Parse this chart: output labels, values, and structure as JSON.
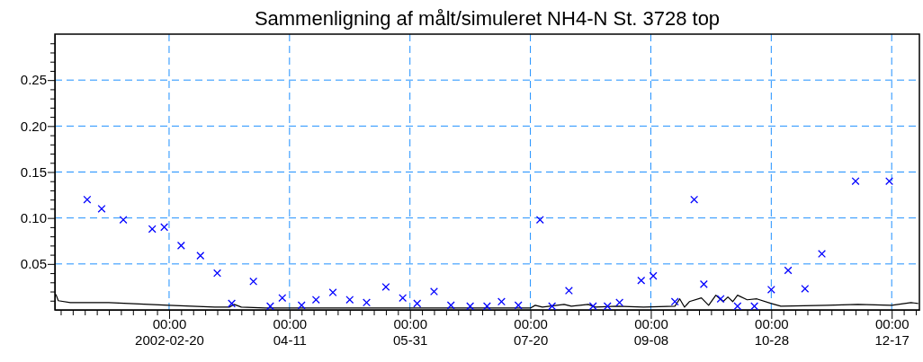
{
  "chart_data": {
    "type": "scatter",
    "title": "Sammenligning af målt/simuleret NH4-N St. 3728 top",
    "xlim": [
      "2002-01-03T14:00",
      "2002-12-28T12:00"
    ],
    "ylim": [
      0,
      0.3
    ],
    "xticks": [
      {
        "value": "2002-01-06",
        "label": null
      },
      {
        "value": "2002-01-11",
        "label": null
      },
      {
        "value": "2002-01-16",
        "label": null
      },
      {
        "value": "2002-01-21",
        "label": null
      },
      {
        "value": "2002-01-26",
        "label": null
      },
      {
        "value": "2002-01-31",
        "label": null
      },
      {
        "value": "2002-02-05",
        "label": null
      },
      {
        "value": "2002-02-10",
        "label": null
      },
      {
        "value": "2002-02-15",
        "label": null
      },
      {
        "value": "2002-02-20",
        "label": "00:00\n2002-02-20"
      },
      {
        "value": "2002-02-25",
        "label": null
      },
      {
        "value": "2002-03-02",
        "label": null
      },
      {
        "value": "2002-03-07",
        "label": null
      },
      {
        "value": "2002-03-12",
        "label": null
      },
      {
        "value": "2002-03-17",
        "label": null
      },
      {
        "value": "2002-03-22",
        "label": null
      },
      {
        "value": "2002-03-27",
        "label": null
      },
      {
        "value": "2002-04-01",
        "label": null
      },
      {
        "value": "2002-04-06",
        "label": null
      },
      {
        "value": "2002-04-11",
        "label": "00:00\n04-11"
      },
      {
        "value": "2002-04-16",
        "label": null
      },
      {
        "value": "2002-04-21",
        "label": null
      },
      {
        "value": "2002-04-26",
        "label": null
      },
      {
        "value": "2002-05-01",
        "label": null
      },
      {
        "value": "2002-05-06",
        "label": null
      },
      {
        "value": "2002-05-11",
        "label": null
      },
      {
        "value": "2002-05-16",
        "label": null
      },
      {
        "value": "2002-05-21",
        "label": null
      },
      {
        "value": "2002-05-26",
        "label": null
      },
      {
        "value": "2002-05-31",
        "label": "00:00\n05-31"
      },
      {
        "value": "2002-06-05",
        "label": null
      },
      {
        "value": "2002-06-10",
        "label": null
      },
      {
        "value": "2002-06-15",
        "label": null
      },
      {
        "value": "2002-06-20",
        "label": null
      },
      {
        "value": "2002-06-25",
        "label": null
      },
      {
        "value": "2002-06-30",
        "label": null
      },
      {
        "value": "2002-07-05",
        "label": null
      },
      {
        "value": "2002-07-10",
        "label": null
      },
      {
        "value": "2002-07-15",
        "label": null
      },
      {
        "value": "2002-07-20",
        "label": "00:00\n07-20"
      },
      {
        "value": "2002-07-25",
        "label": null
      },
      {
        "value": "2002-07-30",
        "label": null
      },
      {
        "value": "2002-08-04",
        "label": null
      },
      {
        "value": "2002-08-09",
        "label": null
      },
      {
        "value": "2002-08-14",
        "label": null
      },
      {
        "value": "2002-08-19",
        "label": null
      },
      {
        "value": "2002-08-24",
        "label": null
      },
      {
        "value": "2002-08-29",
        "label": null
      },
      {
        "value": "2002-09-03",
        "label": null
      },
      {
        "value": "2002-09-08",
        "label": "00:00\n09-08"
      },
      {
        "value": "2002-09-13",
        "label": null
      },
      {
        "value": "2002-09-18",
        "label": null
      },
      {
        "value": "2002-09-23",
        "label": null
      },
      {
        "value": "2002-09-28",
        "label": null
      },
      {
        "value": "2002-10-03",
        "label": null
      },
      {
        "value": "2002-10-08",
        "label": null
      },
      {
        "value": "2002-10-13",
        "label": null
      },
      {
        "value": "2002-10-18",
        "label": null
      },
      {
        "value": "2002-10-23",
        "label": null
      },
      {
        "value": "2002-10-28",
        "label": "00:00\n10-28"
      },
      {
        "value": "2002-11-02",
        "label": null
      },
      {
        "value": "2002-11-07",
        "label": null
      },
      {
        "value": "2002-11-12",
        "label": null
      },
      {
        "value": "2002-11-17",
        "label": null
      },
      {
        "value": "2002-11-22",
        "label": null
      },
      {
        "value": "2002-11-27",
        "label": null
      },
      {
        "value": "2002-12-02",
        "label": null
      },
      {
        "value": "2002-12-07",
        "label": null
      },
      {
        "value": "2002-12-12",
        "label": null
      },
      {
        "value": "2002-12-17",
        "label": "00:00\n12-17"
      },
      {
        "value": "2002-12-22",
        "label": null
      },
      {
        "value": "2002-12-27",
        "label": null
      }
    ],
    "yticks": [
      {
        "value": 0.01,
        "label": null
      },
      {
        "value": 0.02,
        "label": null
      },
      {
        "value": 0.03,
        "label": null
      },
      {
        "value": 0.04,
        "label": null
      },
      {
        "value": 0.05,
        "label": "0.05"
      },
      {
        "value": 0.06,
        "label": null
      },
      {
        "value": 0.07,
        "label": null
      },
      {
        "value": 0.08,
        "label": null
      },
      {
        "value": 0.09,
        "label": null
      },
      {
        "value": 0.1,
        "label": "0.10"
      },
      {
        "value": 0.11,
        "label": null
      },
      {
        "value": 0.12,
        "label": null
      },
      {
        "value": 0.13,
        "label": null
      },
      {
        "value": 0.14,
        "label": null
      },
      {
        "value": 0.15,
        "label": "0.15"
      },
      {
        "value": 0.16,
        "label": null
      },
      {
        "value": 0.17,
        "label": null
      },
      {
        "value": 0.18,
        "label": null
      },
      {
        "value": 0.19,
        "label": null
      },
      {
        "value": 0.2,
        "label": "0.20"
      },
      {
        "value": 0.21,
        "label": null
      },
      {
        "value": 0.22,
        "label": null
      },
      {
        "value": 0.23,
        "label": null
      },
      {
        "value": 0.24,
        "label": null
      },
      {
        "value": 0.25,
        "label": "0.25"
      },
      {
        "value": 0.26,
        "label": null
      },
      {
        "value": 0.27,
        "label": null
      },
      {
        "value": 0.28,
        "label": null
      },
      {
        "value": 0.29,
        "label": null
      }
    ],
    "grid": true,
    "series": [
      {
        "type": "line",
        "color": "#000000",
        "marker": "none",
        "line_style": "solid",
        "x": [
          "2002-01-04",
          "2002-01-05",
          "2002-01-10",
          "2002-01-26",
          "2002-02-20",
          "2002-03-11",
          "2002-03-17",
          "2002-03-19",
          "2002-03-22",
          "2002-04-01",
          "2002-05-01",
          "2002-06-01",
          "2002-07-01",
          "2002-07-20",
          "2002-07-22",
          "2002-07-25",
          "2002-08-03",
          "2002-08-06",
          "2002-08-13",
          "2002-08-16",
          "2002-08-25",
          "2002-09-05",
          "2002-09-18",
          "2002-09-20",
          "2002-09-22",
          "2002-09-24",
          "2002-09-29",
          "2002-10-02",
          "2002-10-05",
          "2002-10-08",
          "2002-10-10",
          "2002-10-12",
          "2002-10-14",
          "2002-10-18",
          "2002-10-22",
          "2002-10-28",
          "2002-11-01",
          "2002-11-20",
          "2002-12-03",
          "2002-12-17",
          "2002-12-25",
          "2002-12-28"
        ],
        "values": [
          0.017,
          0.01,
          0.008,
          0.008,
          0.005,
          0.003,
          0.003,
          0.006,
          0.003,
          0.002,
          0.002,
          0.002,
          0.002,
          0.002,
          0.005,
          0.003,
          0.006,
          0.004,
          0.006,
          0.003,
          0.004,
          0.003,
          0.004,
          0.012,
          0.003,
          0.009,
          0.013,
          0.005,
          0.016,
          0.009,
          0.014,
          0.009,
          0.016,
          0.011,
          0.012,
          0.007,
          0.004,
          0.005,
          0.006,
          0.005,
          0.008,
          0.007
        ]
      },
      {
        "color": "#0000ff",
        "marker": "cross",
        "x": [
          "2002-01-17",
          "2002-01-23",
          "2002-02-01",
          "2002-02-13",
          "2002-02-18",
          "2002-02-25",
          "2002-03-05",
          "2002-03-12",
          "2002-03-18",
          "2002-03-27",
          "2002-04-03",
          "2002-04-08",
          "2002-04-16",
          "2002-04-22",
          "2002-04-29",
          "2002-05-06",
          "2002-05-13",
          "2002-05-21",
          "2002-05-28",
          "2002-06-03",
          "2002-06-10",
          "2002-06-17",
          "2002-06-25",
          "2002-07-02",
          "2002-07-08",
          "2002-07-15",
          "2002-07-24",
          "2002-07-29",
          "2002-08-05",
          "2002-08-15",
          "2002-08-21",
          "2002-08-26",
          "2002-09-04",
          "2002-09-09",
          "2002-09-18",
          "2002-09-26",
          "2002-09-30",
          "2002-10-07",
          "2002-10-14",
          "2002-10-21",
          "2002-10-28",
          "2002-11-04",
          "2002-11-11",
          "2002-11-18",
          "2002-12-02",
          "2002-12-16"
        ],
        "values": [
          0.12,
          0.11,
          0.098,
          0.088,
          0.09,
          0.07,
          0.059,
          0.04,
          0.007,
          0.031,
          0.004,
          0.013,
          0.005,
          0.011,
          0.019,
          0.011,
          0.008,
          0.025,
          0.013,
          0.007,
          0.02,
          0.005,
          0.004,
          0.004,
          0.009,
          0.005,
          0.098,
          0.004,
          0.021,
          0.004,
          0.004,
          0.008,
          0.032,
          0.037,
          0.009,
          0.12,
          0.028,
          0.012,
          0.004,
          0.004,
          0.022,
          0.043,
          0.023,
          0.061,
          0.14,
          0.14
        ]
      }
    ]
  }
}
